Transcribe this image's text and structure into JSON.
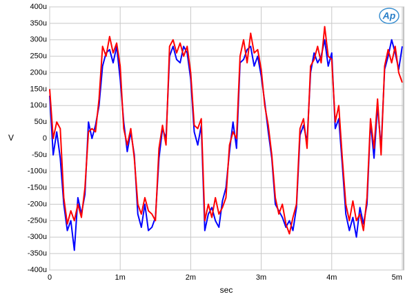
{
  "chart_data": {
    "type": "line",
    "logo_text": "Ap",
    "xlabel": "sec",
    "ylabel": "V",
    "xlim": [
      0,
      0.00502
    ],
    "ylim": [
      -0.0004,
      0.0004
    ],
    "xticks": [
      0,
      {
        "value": 0.001,
        "label": "1m"
      },
      {
        "value": 0.002,
        "label": "2m"
      },
      {
        "value": 0.003,
        "label": "3m"
      },
      {
        "value": 0.004,
        "label": "4m"
      },
      {
        "value": 0.005,
        "label": "5m"
      }
    ],
    "yticks": [
      {
        "value": -0.0004,
        "label": "-400u"
      },
      {
        "value": -0.00035,
        "label": "-350u"
      },
      {
        "value": -0.0003,
        "label": "-300u"
      },
      {
        "value": -0.00025,
        "label": "-250u"
      },
      {
        "value": -0.0002,
        "label": "-200u"
      },
      {
        "value": -0.00015,
        "label": "-150u"
      },
      {
        "value": -0.0001,
        "label": "-100u"
      },
      {
        "value": -5e-05,
        "label": "-50u"
      },
      0,
      {
        "value": 5e-05,
        "label": "50u"
      },
      {
        "value": 0.0001,
        "label": "100u"
      },
      {
        "value": 0.00015,
        "label": "150u"
      },
      {
        "value": 0.0002,
        "label": "200u"
      },
      {
        "value": 0.00025,
        "label": "250u"
      },
      {
        "value": 0.0003,
        "label": "300u"
      },
      {
        "value": 0.00035,
        "label": "350u"
      },
      {
        "value": 0.0004,
        "label": "400u"
      }
    ],
    "grid": true,
    "x": [
      0,
      5e-05,
      0.0001,
      0.00015,
      0.0002,
      0.00025,
      0.0003,
      0.00035,
      0.0004,
      0.00045,
      0.0005,
      0.00055,
      0.0006,
      0.00065,
      0.0007,
      0.00075,
      0.0008,
      0.00085,
      0.0009,
      0.00095,
      0.001,
      0.00105,
      0.0011,
      0.00115,
      0.0012,
      0.00125,
      0.0013,
      0.00135,
      0.0014,
      0.00145,
      0.0015,
      0.00155,
      0.0016,
      0.00165,
      0.0017,
      0.00175,
      0.0018,
      0.00185,
      0.0019,
      0.00195,
      0.002,
      0.00205,
      0.0021,
      0.00215,
      0.0022,
      0.00225,
      0.0023,
      0.00235,
      0.0024,
      0.00245,
      0.0025,
      0.00255,
      0.0026,
      0.00265,
      0.0027,
      0.00275,
      0.0028,
      0.00285,
      0.0029,
      0.00295,
      0.003,
      0.00305,
      0.0031,
      0.00315,
      0.0032,
      0.00325,
      0.0033,
      0.00335,
      0.0034,
      0.00345,
      0.0035,
      0.00355,
      0.0036,
      0.00365,
      0.0037,
      0.00375,
      0.0038,
      0.00385,
      0.0039,
      0.00395,
      0.004,
      0.00405,
      0.0041,
      0.00415,
      0.0042,
      0.00425,
      0.0043,
      0.00435,
      0.0044,
      0.00445,
      0.0045,
      0.00455,
      0.0046,
      0.00465,
      0.0047,
      0.00475,
      0.0048,
      0.00485,
      0.0049,
      0.00495,
      0.005
    ],
    "series": [
      {
        "color": "#0000ff",
        "values": [
          0.00013,
          -5e-05,
          2e-05,
          -6e-05,
          -0.0002,
          -0.00028,
          -0.00025,
          -0.00034,
          -0.00018,
          -0.00023,
          -0.00017,
          5e-05,
          0,
          4e-05,
          0.0001,
          0.00022,
          0.00026,
          0.00027,
          0.00023,
          0.00028,
          0.00018,
          5e-05,
          -4e-05,
          2e-05,
          -5e-05,
          -0.00023,
          -0.00027,
          -0.0002,
          -0.00028,
          -0.00027,
          -0.00024,
          -6e-05,
          3e-05,
          0,
          0.00025,
          0.00028,
          0.00024,
          0.00023,
          0.00028,
          0.00026,
          0.00018,
          2e-05,
          -2e-05,
          4e-05,
          -0.00028,
          -0.00023,
          -0.00021,
          -0.00025,
          -0.00027,
          -0.00019,
          -0.00015,
          -4e-05,
          5e-05,
          -3e-05,
          0.00023,
          0.00024,
          0.00027,
          0.00028,
          0.00022,
          0.00025,
          0.00019,
          0.00011,
          2e-05,
          -6e-05,
          -0.0002,
          -0.00022,
          -0.00024,
          -0.00027,
          -0.00025,
          -0.00028,
          -0.00021,
          1e-05,
          4e-05,
          -1e-05,
          0.0002,
          0.00026,
          0.00023,
          0.00025,
          0.0003,
          0.00022,
          0.00026,
          3e-05,
          6e-05,
          -8e-05,
          -0.00023,
          -0.00028,
          -0.00024,
          -0.0003,
          -0.00021,
          -0.00026,
          -0.0002,
          5e-05,
          -6e-05,
          0.0001,
          -3e-05,
          0.00021,
          0.00025,
          0.0003,
          0.00026,
          0.00021,
          0.00028
        ]
      },
      {
        "color": "#ff0000",
        "values": [
          0.00015,
          0,
          5e-05,
          3e-05,
          -0.00018,
          -0.00026,
          -0.00022,
          -0.00025,
          -0.0002,
          -0.00024,
          -0.00015,
          2e-05,
          3e-05,
          2e-05,
          0.00012,
          0.00028,
          0.00025,
          0.00031,
          0.00026,
          0.00029,
          0.00022,
          3e-05,
          -2e-05,
          3e-05,
          -6e-05,
          -0.0002,
          -0.00023,
          -0.00018,
          -0.00022,
          -0.00023,
          -0.00025,
          -3e-05,
          4e-05,
          -2e-05,
          0.00028,
          0.0003,
          0.00026,
          0.00029,
          0.00025,
          0.00028,
          0.0002,
          4e-05,
          3e-05,
          6e-05,
          -0.00025,
          -0.0002,
          -0.00024,
          -0.00018,
          -0.00023,
          -0.00021,
          -0.00018,
          -2e-05,
          2e-05,
          0,
          0.00025,
          0.0003,
          0.00023,
          0.00032,
          0.00026,
          0.00027,
          0.00021,
          0.0001,
          4e-05,
          -5e-05,
          -0.00018,
          -0.00023,
          -0.0002,
          -0.00026,
          -0.00029,
          -0.00024,
          -0.0002,
          3e-05,
          6e-05,
          -3e-05,
          0.00022,
          0.00024,
          0.00028,
          0.00023,
          0.00034,
          0.00025,
          0.00024,
          5e-05,
          0.0001,
          -6e-05,
          -0.0002,
          -0.00025,
          -0.00019,
          -0.00025,
          -0.00023,
          -0.00028,
          -0.00018,
          6e-05,
          -3e-05,
          0.00012,
          -5e-05,
          0.00022,
          0.00027,
          0.00023,
          0.00028,
          0.0002,
          0.00017
        ]
      }
    ]
  }
}
